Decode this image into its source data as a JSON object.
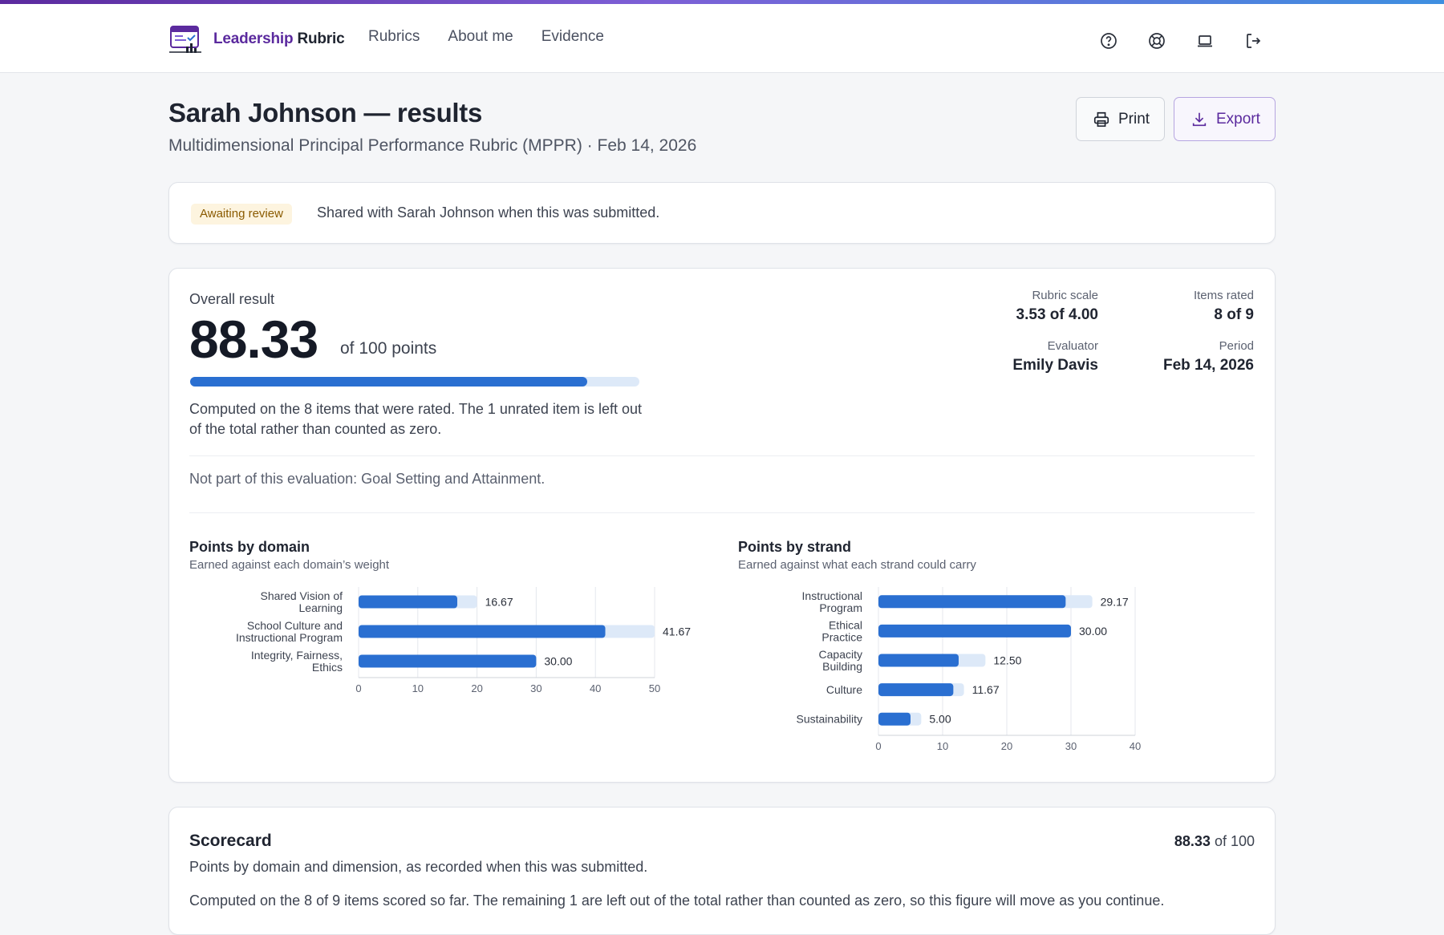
{
  "header": {
    "brand_part1": "Leadership",
    "brand_part2": "Rubric",
    "nav": [
      "Rubrics",
      "About me",
      "Evidence"
    ],
    "icons": [
      "help-icon",
      "support-icon",
      "laptop-icon",
      "logout-icon"
    ]
  },
  "page": {
    "title": "Sarah Johnson — results",
    "subtitle": "Multidimensional Principal Performance Rubric (MPPR) · Feb 14, 2026",
    "print_label": "Print",
    "export_label": "Export"
  },
  "status": {
    "badge": "Awaiting review",
    "text": "Shared with Sarah Johnson when this was submitted."
  },
  "overall": {
    "label": "Overall result",
    "score": "88.33",
    "of_label": "of 100 points",
    "progress_fraction": 0.8833,
    "note": "Computed on the 8 items that were rated. The 1 unrated item is left out of the total rather than counted as zero.",
    "rubric_scale_label": "Rubric scale",
    "rubric_scale_value": "3.53 of 4.00",
    "items_rated_label": "Items rated",
    "items_rated_value": "8 of 9",
    "evaluator_label": "Evaluator",
    "evaluator_value": "Emily Davis",
    "period_label": "Period",
    "period_value": "Feb 14, 2026",
    "not_part": "Not part of this evaluation: Goal Setting and Attainment."
  },
  "chart_data": [
    {
      "type": "bar",
      "orientation": "horizontal",
      "title": "Points by domain",
      "subtitle": "Earned against each domain’s weight",
      "categories": [
        "Shared Vision of Learning",
        "School Culture and Instructional Program",
        "Integrity, Fairness, Ethics"
      ],
      "earned": [
        16.67,
        41.67,
        30.0
      ],
      "possible": [
        20,
        50,
        30
      ],
      "value_labels": [
        "16.67",
        "41.67",
        "30.00"
      ],
      "xlim": [
        0,
        50
      ],
      "xticks": [
        "0",
        "10",
        "20",
        "30",
        "40",
        "50"
      ],
      "grid": true
    },
    {
      "type": "bar",
      "orientation": "horizontal",
      "title": "Points by strand",
      "subtitle": "Earned against what each strand could carry",
      "categories": [
        "Instructional Program",
        "Ethical Practice",
        "Capacity Building",
        "Culture",
        "Sustainability"
      ],
      "earned": [
        29.17,
        30.0,
        12.5,
        11.67,
        5.0
      ],
      "possible": [
        33.33,
        30.0,
        16.67,
        13.33,
        6.67
      ],
      "value_labels": [
        "29.17",
        "30.00",
        "12.50",
        "11.67",
        "5.00"
      ],
      "xlim": [
        0,
        40
      ],
      "xticks": [
        "0",
        "10",
        "20",
        "30",
        "40"
      ],
      "grid": true
    }
  ],
  "colors": {
    "accent": "#5b2a9e",
    "bar_earned": "#2a6fd1",
    "bar_possible": "#dde9f8"
  },
  "scorecard": {
    "title": "Scorecard",
    "total_value": "88.33",
    "total_suffix": "of 100",
    "subtitle": "Points by domain and dimension, as recorded when this was submitted.",
    "note": "Computed on the 8 of 9 items scored so far. The remaining 1 are left out of the total rather than counted as zero, so this figure will move as you continue."
  }
}
